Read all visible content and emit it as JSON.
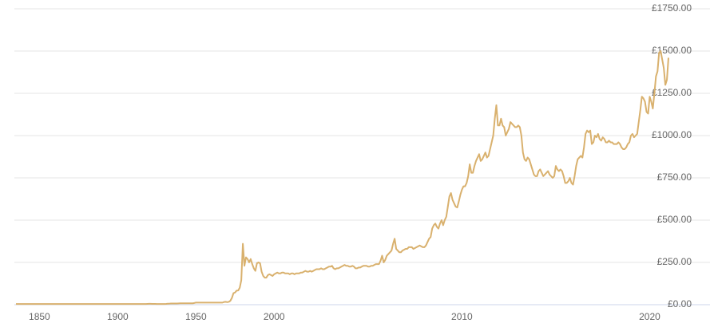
{
  "chart_data": {
    "type": "line",
    "categories": [
      null,
      null,
      null,
      null,
      null,
      null,
      null,
      null,
      null,
      null,
      null,
      null,
      null,
      null,
      null,
      "1850",
      null,
      null,
      null,
      null,
      null,
      null,
      null,
      null,
      null,
      null,
      null,
      null,
      null,
      null,
      null,
      null,
      null,
      null,
      null,
      null,
      null,
      null,
      null,
      null,
      null,
      null,
      null,
      null,
      null,
      null,
      null,
      null,
      null,
      null,
      null,
      null,
      null,
      null,
      null,
      null,
      null,
      null,
      null,
      null,
      null,
      null,
      null,
      null,
      null,
      "1900",
      null,
      null,
      null,
      null,
      null,
      null,
      null,
      null,
      null,
      null,
      null,
      null,
      null,
      null,
      null,
      null,
      null,
      null,
      null,
      null,
      null,
      null,
      null,
      null,
      null,
      null,
      null,
      null,
      null,
      null,
      null,
      null,
      null,
      null,
      null,
      null,
      null,
      null,
      null,
      null,
      null,
      null,
      null,
      null,
      null,
      null,
      null,
      null,
      null,
      "1950",
      null,
      null,
      null,
      null,
      null,
      null,
      null,
      null,
      null,
      null,
      null,
      null,
      null,
      null,
      null,
      null,
      null,
      null,
      null,
      null,
      null,
      null,
      null,
      null,
      null,
      null,
      null,
      null,
      null,
      null,
      null,
      null,
      null,
      null,
      null,
      null,
      null,
      null,
      null,
      null,
      null,
      null,
      null,
      null,
      null,
      null,
      null,
      null,
      null,
      "2000",
      null,
      null,
      null,
      null,
      null,
      null,
      null,
      null,
      null,
      null,
      null,
      null,
      null,
      null,
      null,
      null,
      null,
      null,
      null,
      null,
      null,
      null,
      null,
      null,
      null,
      null,
      null,
      null,
      null,
      null,
      null,
      null,
      null,
      null,
      null,
      null,
      null,
      null,
      null,
      null,
      null,
      null,
      null,
      null,
      null,
      null,
      null,
      null,
      null,
      null,
      null,
      null,
      null,
      null,
      null,
      null,
      null,
      null,
      null,
      null,
      null,
      null,
      null,
      null,
      null,
      null,
      null,
      null,
      null,
      null,
      null,
      null,
      null,
      null,
      null,
      null,
      null,
      null,
      null,
      null,
      null,
      null,
      null,
      null,
      null,
      null,
      null,
      null,
      null,
      null,
      null,
      null,
      null,
      null,
      null,
      null,
      null,
      null,
      null,
      null,
      null,
      null,
      null,
      null,
      null,
      null,
      null,
      null,
      null,
      null,
      null,
      null,
      null,
      null,
      null,
      null,
      null,
      null,
      null,
      "2010",
      null,
      null,
      null,
      null,
      null,
      null,
      null,
      null,
      null,
      null,
      null,
      null,
      null,
      null,
      null,
      null,
      null,
      null,
      null,
      null,
      null,
      null,
      null,
      null,
      null,
      null,
      null,
      null,
      null,
      null,
      null,
      null,
      null,
      null,
      null,
      null,
      null,
      null,
      null,
      null,
      null,
      null,
      null,
      null,
      null,
      null,
      null,
      null,
      null,
      null,
      null,
      null,
      null,
      null,
      null,
      null,
      null,
      null,
      null,
      null,
      null,
      null,
      null,
      null,
      null,
      null,
      null,
      null,
      null,
      null,
      null,
      null,
      null,
      null,
      null,
      null,
      null,
      null,
      null,
      null,
      null,
      null,
      null,
      null,
      null,
      null,
      null,
      null,
      null,
      null,
      null,
      null,
      null,
      null,
      null,
      null,
      null,
      null,
      null,
      null,
      null,
      null,
      null,
      null,
      null,
      null,
      null,
      null,
      null,
      null,
      null,
      null,
      null,
      null,
      null,
      null,
      null,
      null,
      null,
      "2020",
      null,
      null,
      null,
      null,
      null,
      null,
      null,
      null,
      null,
      null,
      null,
      null
    ],
    "values": [
      4.25,
      4.25,
      4.25,
      4.25,
      4.25,
      4.25,
      4.25,
      4.25,
      4.25,
      4.25,
      4.25,
      4.25,
      4.25,
      4.25,
      4.25,
      4.25,
      4.25,
      4.25,
      4.25,
      4.25,
      4.25,
      4.25,
      4.25,
      4.25,
      4.25,
      4.25,
      4.25,
      4.25,
      4.25,
      4.25,
      4.25,
      4.25,
      4.25,
      4.25,
      4.25,
      4.25,
      4.25,
      4.25,
      4.25,
      4.25,
      4.25,
      4.25,
      4.25,
      4.25,
      4.25,
      4.25,
      4.25,
      4.25,
      4.25,
      4.25,
      4.25,
      4.25,
      4.25,
      4.25,
      4.25,
      4.25,
      4.25,
      4.25,
      4.25,
      4.25,
      4.25,
      4.25,
      4.25,
      4.25,
      4.25,
      4.25,
      4.25,
      4.25,
      4.25,
      4.25,
      4.25,
      4.25,
      4.25,
      4.25,
      4.25,
      4.25,
      4.25,
      4.25,
      4.25,
      4.25,
      4.25,
      4.25,
      4.25,
      4.25,
      4.8,
      5.5,
      5.2,
      4.6,
      4.7,
      4.9,
      4.25,
      4.25,
      4.25,
      4.25,
      4.25,
      4.25,
      4.6,
      5.9,
      6.2,
      6.9,
      7.1,
      7.0,
      7.0,
      7.1,
      7.7,
      8.4,
      8.4,
      8.4,
      8.4,
      8.4,
      8.4,
      8.4,
      8.4,
      8.4,
      10.2,
      12.4,
      12.4,
      12.4,
      12.4,
      12.4,
      12.4,
      12.4,
      12.4,
      12.4,
      12.4,
      12.4,
      12.4,
      12.4,
      12.4,
      12.4,
      12.4,
      12.4,
      12.4,
      16,
      17,
      15,
      16.8,
      23,
      40,
      68,
      72,
      83,
      84,
      100,
      145,
      360,
      230,
      280,
      270,
      250,
      270,
      240,
      215,
      200,
      245,
      250,
      245,
      195,
      170,
      160,
      160,
      175,
      180,
      175,
      170,
      180,
      185,
      190,
      185,
      185,
      190,
      190,
      185,
      185,
      185,
      180,
      185,
      185,
      180,
      185,
      185,
      185,
      190,
      190,
      195,
      200,
      195,
      195,
      200,
      195,
      200,
      205,
      210,
      210,
      210,
      215,
      210,
      210,
      215,
      220,
      225,
      225,
      230,
      215,
      210,
      215,
      215,
      220,
      225,
      230,
      235,
      230,
      230,
      225,
      225,
      230,
      225,
      215,
      215,
      220,
      220,
      225,
      230,
      230,
      230,
      225,
      225,
      230,
      230,
      235,
      240,
      240,
      240,
      260,
      290,
      250,
      265,
      290,
      300,
      310,
      320,
      360,
      390,
      330,
      320,
      310,
      310,
      320,
      325,
      330,
      330,
      340,
      340,
      340,
      330,
      335,
      340,
      345,
      350,
      345,
      340,
      340,
      350,
      370,
      390,
      400,
      450,
      470,
      480,
      460,
      450,
      480,
      500,
      470,
      500,
      520,
      580,
      640,
      660,
      620,
      600,
      580,
      575,
      610,
      650,
      680,
      700,
      700,
      720,
      760,
      830,
      780,
      780,
      820,
      850,
      870,
      890,
      850,
      860,
      880,
      900,
      870,
      880,
      920,
      960,
      1000,
      1100,
      1180,
      1060,
      1060,
      1100,
      1060,
      1050,
      1000,
      1020,
      1040,
      1080,
      1070,
      1060,
      1050,
      1050,
      1060,
      1050,
      1000,
      900,
      860,
      850,
      870,
      860,
      830,
      800,
      770,
      760,
      760,
      790,
      800,
      780,
      760,
      770,
      780,
      790,
      770,
      760,
      750,
      760,
      820,
      800,
      790,
      800,
      790,
      760,
      720,
      720,
      730,
      750,
      720,
      710,
      760,
      820,
      860,
      870,
      880,
      870,
      930,
      1010,
      1030,
      1020,
      1030,
      950,
      960,
      1000,
      990,
      1010,
      980,
      970,
      990,
      980,
      960,
      960,
      970,
      960,
      960,
      950,
      950,
      950,
      960,
      950,
      930,
      920,
      920,
      930,
      950,
      960,
      1000,
      1010,
      990,
      1000,
      1010,
      1080,
      1150,
      1230,
      1220,
      1200,
      1140,
      1130,
      1230,
      1200,
      1160,
      1250,
      1350,
      1380,
      1490,
      1500,
      1450,
      1400,
      1300,
      1330,
      1460
    ],
    "color": "#d9b16e",
    "ylim": [
      0,
      1750
    ],
    "yticks": [
      {
        "value": 0,
        "label": "£0.00"
      },
      {
        "value": 250,
        "label": "£250.00"
      },
      {
        "value": 500,
        "label": "£500.00"
      },
      {
        "value": 750,
        "label": "£750.00"
      },
      {
        "value": 1000,
        "label": "£1000.00"
      },
      {
        "value": 1250,
        "label": "£1250.00"
      },
      {
        "value": 1500,
        "label": "£1500.00"
      },
      {
        "value": 1750,
        "label": "£1750.00"
      }
    ],
    "grid": true
  }
}
